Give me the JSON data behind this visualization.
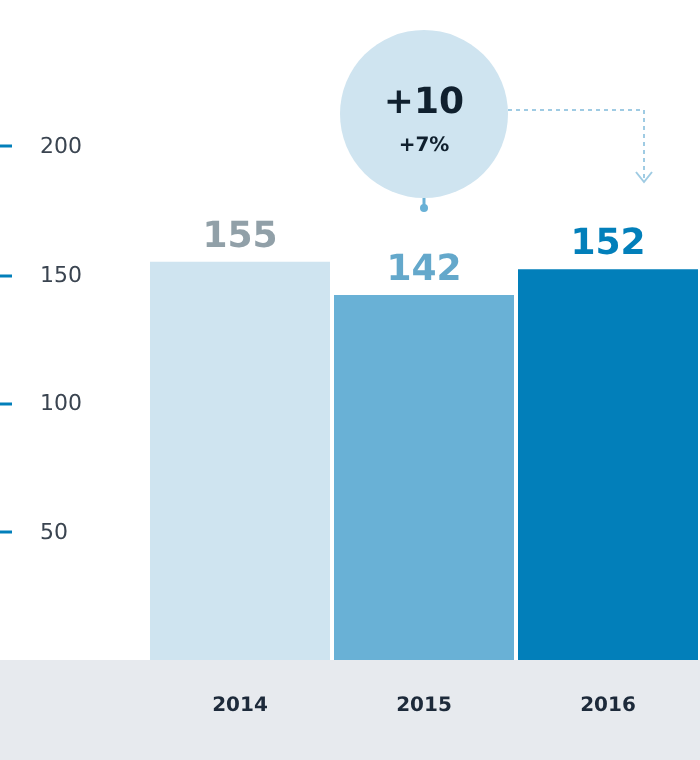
{
  "chart_data": {
    "type": "bar",
    "categories": [
      "2014",
      "2015",
      "2016"
    ],
    "values": [
      155,
      142,
      152
    ],
    "colors": [
      "#cfe4f0",
      "#69b1d6",
      "#027fba"
    ],
    "data_labels": true,
    "ylim": [
      0,
      200
    ],
    "yticks": [
      50,
      100,
      150,
      200
    ],
    "annotations": [
      "+10",
      "+7%"
    ]
  }
}
